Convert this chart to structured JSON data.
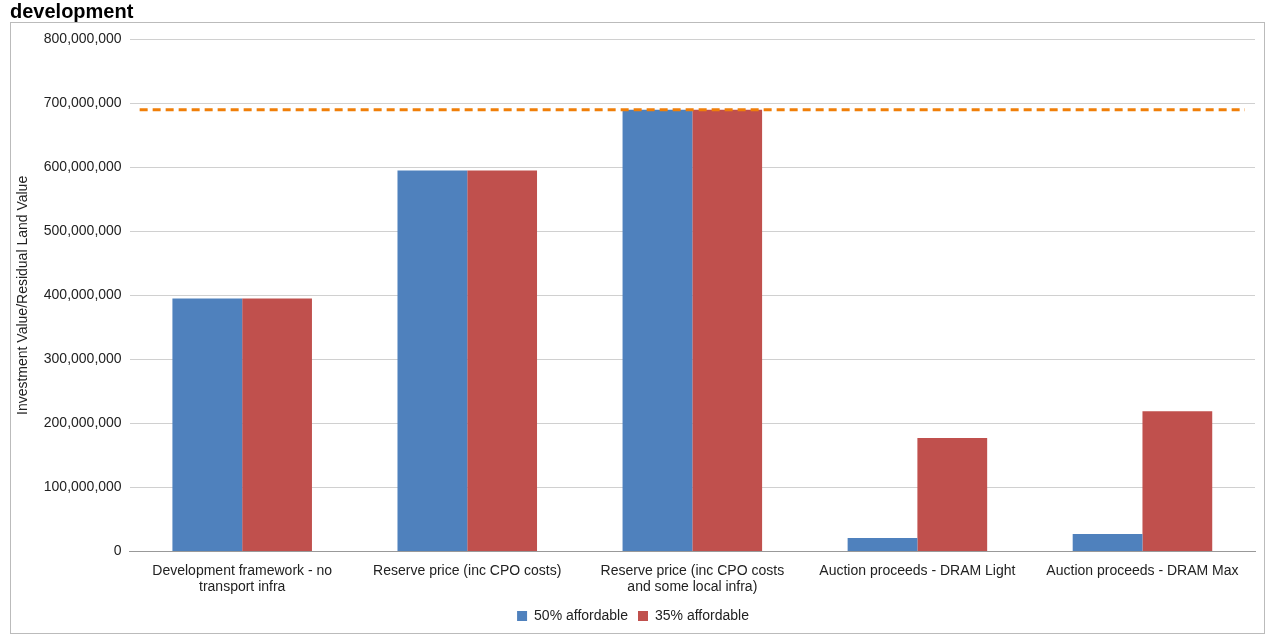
{
  "chart_data": {
    "type": "bar",
    "title": "development",
    "ylabel": "Investment Value/Residual Land Value",
    "categories": [
      "Development framework - no transport infra",
      "Reserve price (inc CPO costs)",
      "Reserve price (inc CPO costs and some local infra)",
      "Auction proceeds - DRAM Light",
      "Auction proceeds - DRAM Max"
    ],
    "series": [
      {
        "name": "50% affordable",
        "color": "#4f81bd",
        "values": [
          395000000,
          595000000,
          690000000,
          21000000,
          27000000
        ]
      },
      {
        "name": "35% affordable",
        "color": "#c0504d",
        "values": [
          395000000,
          595000000,
          690000000,
          177000000,
          219000000
        ]
      }
    ],
    "ylim": [
      0,
      800000000
    ],
    "yticks": [
      {
        "value": 0,
        "label": "0"
      },
      {
        "value": 100000000,
        "label": "100,000,000"
      },
      {
        "value": 200000000,
        "label": "200,000,000"
      },
      {
        "value": 300000000,
        "label": "300,000,000"
      },
      {
        "value": 400000000,
        "label": "400,000,000"
      },
      {
        "value": 500000000,
        "label": "500,000,000"
      },
      {
        "value": 600000000,
        "label": "600,000,000"
      },
      {
        "value": 700000000,
        "label": "700,000,000"
      },
      {
        "value": 800000000,
        "label": "800,000,000"
      }
    ],
    "ref_lines": [
      {
        "axis": "y",
        "value": 690000000,
        "color": "#f07f09",
        "line_style": "dashed"
      }
    ],
    "grid": "y",
    "legend": "bottom"
  }
}
